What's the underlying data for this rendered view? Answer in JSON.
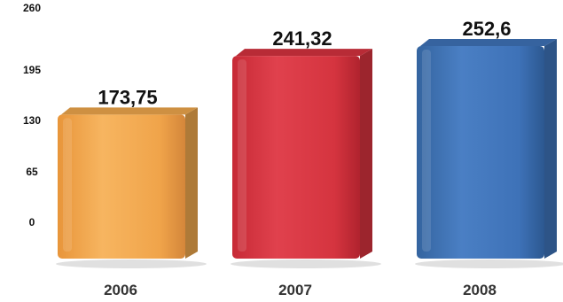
{
  "chart_data": {
    "type": "bar",
    "title": "",
    "xlabel": "",
    "ylabel": "",
    "categories": [
      "2006",
      "2007",
      "2008"
    ],
    "values": [
      173.75,
      241.32,
      252.6
    ],
    "data_labels": [
      "173,75",
      "241,32",
      "252,6"
    ],
    "yticks": [
      0,
      65,
      130,
      195,
      260
    ],
    "ytick_labels": [
      "0",
      "65",
      "130",
      "195",
      "260"
    ],
    "ylim": [
      0,
      260
    ],
    "grid": false,
    "legend": "none",
    "colors": [
      "#f2a94e",
      "#d9333f",
      "#3f74bb"
    ]
  }
}
